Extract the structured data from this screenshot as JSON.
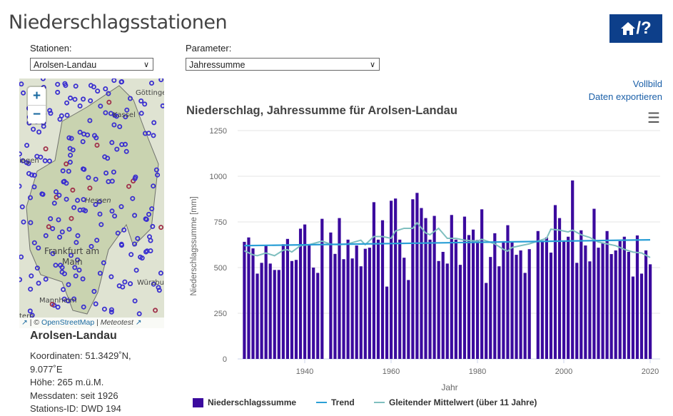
{
  "header": {
    "title": "Niederschlagsstationen",
    "home_help_label": "/?"
  },
  "controls": {
    "stations_label": "Stationen:",
    "station_value": "Arolsen-Landau",
    "parameter_label": "Parameter:",
    "parameter_value": "Jahressumme"
  },
  "map": {
    "zoom_in": "+",
    "zoom_out": "−",
    "labels": [
      "Göttinge",
      "Kassel",
      "Hessen",
      "iegen",
      "Frankfurt am",
      "Main",
      "Würzbur",
      "Mannheim",
      "tern"
    ],
    "attribution": {
      "sep1": "| ©",
      "osm": "OpenStreetMap",
      "sep2": "|",
      "meteotest": "Meteotest"
    },
    "colors": {
      "station": "#3a2fd0",
      "station_red": "#a0304a",
      "station_green": "#2e7d32"
    }
  },
  "station": {
    "name": "Arolsen-Landau",
    "lines": [
      "Koordinaten: 51.3429˚N, 9.077˚E",
      "Höhe: 265 m.ü.M.",
      "Messdaten: seit 1926",
      "Stations-ID: DWD 194"
    ]
  },
  "links": {
    "fullscreen": "Vollbild",
    "export": "Daten exportieren"
  },
  "chart_data": {
    "type": "bar",
    "title": "Niederschlag, Jahressumme für Arolsen-Landau",
    "xlabel": "Jahr",
    "ylabel": "Niederschlagssumme [mm]",
    "ylim": [
      0,
      1250
    ],
    "yticks": [
      0,
      250,
      500,
      750,
      1000,
      1250
    ],
    "xticks": [
      1940,
      1960,
      1980,
      2000,
      2020
    ],
    "grid": true,
    "legend": "bottom",
    "colors": {
      "bars": "#3b0a9e",
      "trend": "#2a9fd6",
      "moving_average": "#7fbfbf"
    },
    "series": [
      {
        "name": "Niederschlagssumme",
        "type": "bar",
        "start_year": 1926,
        "values": [
          641,
          665,
          605,
          467,
          526,
          625,
          522,
          487,
          487,
          628,
          657,
          536,
          542,
          713,
          736,
          624,
          500,
          471,
          767,
          null,
          692,
          575,
          771,
          546,
          653,
          550,
          621,
          507,
          603,
          609,
          858,
          653,
          759,
          396,
          866,
          878,
          653,
          554,
          432,
          874,
          909,
          826,
          771,
          653,
          783,
          536,
          586,
          522,
          788,
          653,
          515,
          779,
          678,
          708,
          651,
          819,
          416,
          558,
          688,
          507,
          645,
          732,
          642,
          570,
          594,
          471,
          601,
          null,
          700,
          641,
          665,
          582,
          842,
          771,
          645,
          669,
          977,
          526,
          704,
          621,
          534,
          822,
          609,
          637,
          700,
          574,
          594,
          645,
          669,
          586,
          451,
          676,
          467,
          594,
          518
        ]
      },
      {
        "name": "Trend",
        "type": "line",
        "x": [
          1926,
          2020
        ],
        "values": [
          620,
          652
        ]
      },
      {
        "name": "Gleitender Mittelwert (über 11 Jahre)",
        "type": "line",
        "x": [
          1926,
          1928,
          1929,
          1931,
          1933,
          1935,
          1936,
          1937,
          1939,
          1941,
          1944,
          1946,
          1948,
          1950,
          1953,
          1954,
          1956,
          1958,
          1960,
          1961,
          1963,
          1965,
          1966,
          1968,
          1969,
          1971,
          1973,
          1975,
          1977,
          1980,
          1981,
          1984,
          1986,
          1987,
          1988,
          1990,
          1992,
          1994,
          1996,
          1997,
          1999,
          2001,
          2002,
          2004,
          2006,
          2008,
          2010,
          2012,
          2014,
          2016,
          2018,
          2020
        ],
        "values": [
          592,
          570,
          565,
          580,
          565,
          595,
          598,
          585,
          620,
          625,
          645,
          628,
          625,
          630,
          650,
          625,
          670,
          670,
          660,
          700,
          715,
          715,
          745,
          690,
          680,
          715,
          660,
          660,
          650,
          645,
          655,
          630,
          600,
          590,
          610,
          620,
          630,
          645,
          660,
          710,
          705,
          695,
          705,
          680,
          665,
          640,
          630,
          620,
          600,
          585,
          580,
          555
        ]
      }
    ]
  }
}
